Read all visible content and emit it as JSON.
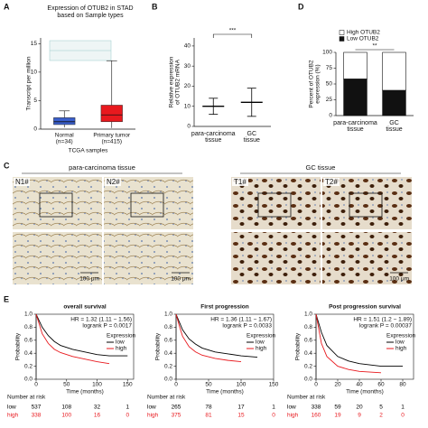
{
  "chart_data": [
    {
      "type": "box",
      "panel_label": "A",
      "title": [
        "Expression of OTUB2 in STAD",
        "based on Sample types"
      ],
      "y_label": "Transcript per million",
      "x_label": "TCGA samples",
      "categories": [
        "Normal",
        "Primary tumor"
      ],
      "category_notes": [
        "(n=34)",
        "(n=415)"
      ],
      "boxes": [
        {
          "min": 0.3,
          "q1": 0.8,
          "median": 1.3,
          "q3": 2.0,
          "max": 3.2
        },
        {
          "min": 0.2,
          "q1": 1.3,
          "median": 2.5,
          "q3": 4.2,
          "max": 12
        }
      ],
      "colors": [
        "#3a5fcd",
        "#e8191e"
      ],
      "ylim": [
        0,
        16
      ],
      "yticks": [
        0,
        5,
        10,
        15
      ]
    },
    {
      "type": "mean_sd",
      "panel_label": "B",
      "y_label": [
        "Relative expression",
        "of OTUB2 mRNA"
      ],
      "categories": [
        [
          "para-carcinoma",
          "tissue"
        ],
        [
          "GC",
          "tissue"
        ]
      ],
      "values": [
        10,
        12
      ],
      "errors": [
        4,
        7
      ],
      "color": "#000000",
      "significance": "***",
      "ylim": [
        0,
        44
      ],
      "yticks": [
        0,
        10,
        20,
        30,
        40
      ]
    },
    {
      "type": "stacked_bar",
      "panel_label": "D",
      "y_label": [
        "Percent of OTUB2",
        "expression (%)"
      ],
      "categories": [
        [
          "para-carcinoma",
          "tissue"
        ],
        [
          "GC",
          "tissue"
        ]
      ],
      "series": [
        {
          "name": "Low OTUB2",
          "color": "#111111",
          "values": [
            58,
            40
          ]
        },
        {
          "name": "High OTUB2",
          "color": "#ffffff",
          "values": [
            42,
            60
          ]
        }
      ],
      "significance": "**",
      "ylim": [
        0,
        100
      ],
      "yticks": [
        0,
        25,
        50,
        75,
        100
      ]
    },
    {
      "type": "km",
      "panel_label": "E",
      "title": "overall survival",
      "annotations": [
        "HR = 1.32 (1.11 − 1.56)",
        "logrank P = 0.0017"
      ],
      "legend_title": "Expression",
      "x_label": "Time (months)",
      "y_label": "Probability",
      "series": [
        {
          "name": "low",
          "color": "#000000",
          "x": [
            0,
            5,
            10,
            20,
            30,
            40,
            60,
            80,
            100,
            120,
            150
          ],
          "values": [
            1,
            0.9,
            0.8,
            0.67,
            0.58,
            0.52,
            0.46,
            0.42,
            0.38,
            0.36,
            0.36
          ]
        },
        {
          "name": "high",
          "color": "#e8191e",
          "x": [
            0,
            5,
            10,
            20,
            30,
            40,
            60,
            80,
            100,
            120
          ],
          "values": [
            1,
            0.85,
            0.7,
            0.55,
            0.46,
            0.41,
            0.35,
            0.31,
            0.27,
            0.24
          ]
        }
      ],
      "xlim": [
        0,
        160
      ],
      "xticks": [
        0,
        50,
        100,
        150
      ],
      "ylim": [
        0,
        1
      ],
      "yticks": [
        {
          "value": 0,
          "label": "0.0"
        },
        0.2,
        0.4,
        0.6,
        0.8,
        {
          "value": 1,
          "label": "1.0"
        }
      ],
      "risk_table": {
        "title": "Number at risk",
        "rows": [
          {
            "name": "low",
            "color": "#000000",
            "values": [
              537,
              108,
              32,
              1
            ]
          },
          {
            "name": "high",
            "color": "#e8191e",
            "values": [
              338,
              100,
              16,
              0
            ]
          }
        ]
      }
    },
    {
      "type": "km",
      "title": "First progression",
      "annotations": [
        "HR = 1.36 (1.11 − 1.67)",
        "logrank P = 0.0033"
      ],
      "legend_title": "Expression",
      "x_label": "Time (months)",
      "y_label": "Probability",
      "series": [
        {
          "name": "low",
          "color": "#000000",
          "x": [
            0,
            5,
            10,
            20,
            30,
            40,
            60,
            80,
            100,
            125
          ],
          "values": [
            1,
            0.88,
            0.76,
            0.62,
            0.54,
            0.48,
            0.42,
            0.39,
            0.36,
            0.34
          ]
        },
        {
          "name": "high",
          "color": "#e8191e",
          "x": [
            0,
            5,
            10,
            20,
            30,
            40,
            60,
            80,
            100
          ],
          "values": [
            1,
            0.82,
            0.66,
            0.5,
            0.42,
            0.37,
            0.32,
            0.29,
            0.27
          ]
        }
      ],
      "xlim": [
        0,
        150
      ],
      "xticks": [
        0,
        50,
        100,
        150
      ],
      "ylim": [
        0,
        1
      ],
      "yticks": [
        {
          "value": 0,
          "label": "0.0"
        },
        0.2,
        0.4,
        0.6,
        0.8,
        {
          "value": 1,
          "label": "1.0"
        }
      ],
      "risk_table": {
        "title": "Number at risk",
        "rows": [
          {
            "name": "low",
            "color": "#000000",
            "values": [
              265,
              78,
              17,
              1
            ]
          },
          {
            "name": "high",
            "color": "#e8191e",
            "values": [
              375,
              81,
              15,
              0
            ]
          }
        ]
      }
    },
    {
      "type": "km",
      "title": "Post progression survival",
      "annotations": [
        "HR = 1.51 (1.2 − 1.89)",
        "logrank P = 0.00037"
      ],
      "legend_title": "Expression",
      "x_label": "Time (months)",
      "y_label": "Probability",
      "series": [
        {
          "name": "low",
          "color": "#000000",
          "x": [
            0,
            5,
            10,
            20,
            30,
            40,
            60,
            80
          ],
          "values": [
            1,
            0.72,
            0.52,
            0.35,
            0.28,
            0.24,
            0.2,
            0.2
          ]
        },
        {
          "name": "high",
          "color": "#e8191e",
          "x": [
            0,
            5,
            10,
            20,
            30,
            40,
            60
          ],
          "values": [
            1,
            0.55,
            0.35,
            0.2,
            0.15,
            0.12,
            0.1
          ]
        }
      ],
      "xlim": [
        0,
        90
      ],
      "xticks": [
        0,
        20,
        40,
        60,
        80
      ],
      "ylim": [
        0,
        1
      ],
      "yticks": [
        {
          "value": 0,
          "label": "0.0"
        },
        0.2,
        0.4,
        0.6,
        0.8,
        {
          "value": 1,
          "label": "1.0"
        }
      ],
      "risk_table": {
        "title": "Number at risk",
        "rows": [
          {
            "name": "low",
            "color": "#000000",
            "values": [
              338,
              59,
              20,
              5,
              1
            ]
          },
          {
            "name": "high",
            "color": "#e8191e",
            "values": [
              160,
              19,
              9,
              2,
              0
            ]
          }
        ]
      }
    }
  ],
  "panel_c": {
    "label": "C",
    "groups": [
      {
        "title": "para-carcinoma tissue",
        "images": [
          {
            "label": "N1#",
            "scale_bar": "100 μm"
          },
          {
            "label": "N2#",
            "scale_bar": "100 μm"
          }
        ]
      },
      {
        "title": "GC tissue",
        "images": [
          {
            "label": "T1#"
          },
          {
            "label": "T2#",
            "scale_bar": "100 μm"
          }
        ]
      }
    ]
  }
}
